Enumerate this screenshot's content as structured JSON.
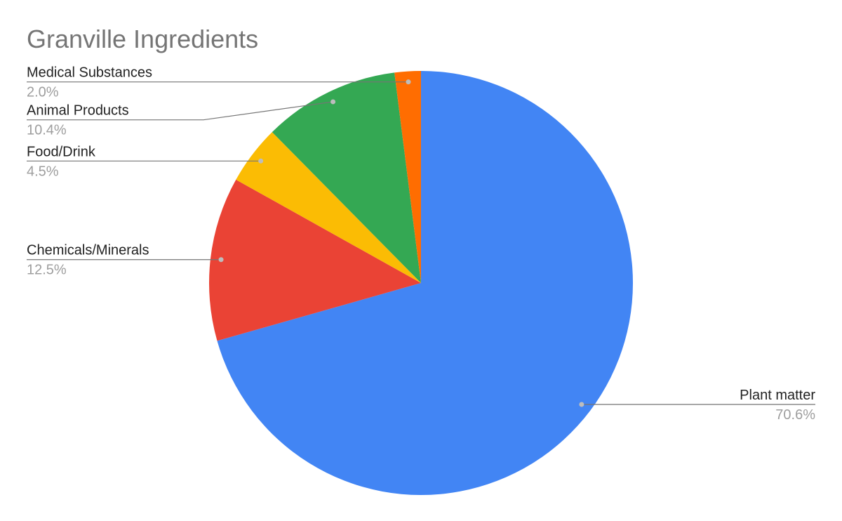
{
  "chart_data": {
    "type": "pie",
    "title": "Granville Ingredients",
    "categories": [
      "Plant matter",
      "Chemicals/Minerals",
      "Food/Drink",
      "Animal Products",
      "Medical Substances"
    ],
    "values": [
      70.6,
      12.5,
      4.5,
      10.4,
      2.0
    ],
    "value_labels": [
      "70.6%",
      "12.5%",
      "4.5%",
      "10.4%",
      "2.0%"
    ],
    "colors": [
      "#4285f4",
      "#ea4335",
      "#fbbc04",
      "#34a853",
      "#ff6d01"
    ]
  }
}
